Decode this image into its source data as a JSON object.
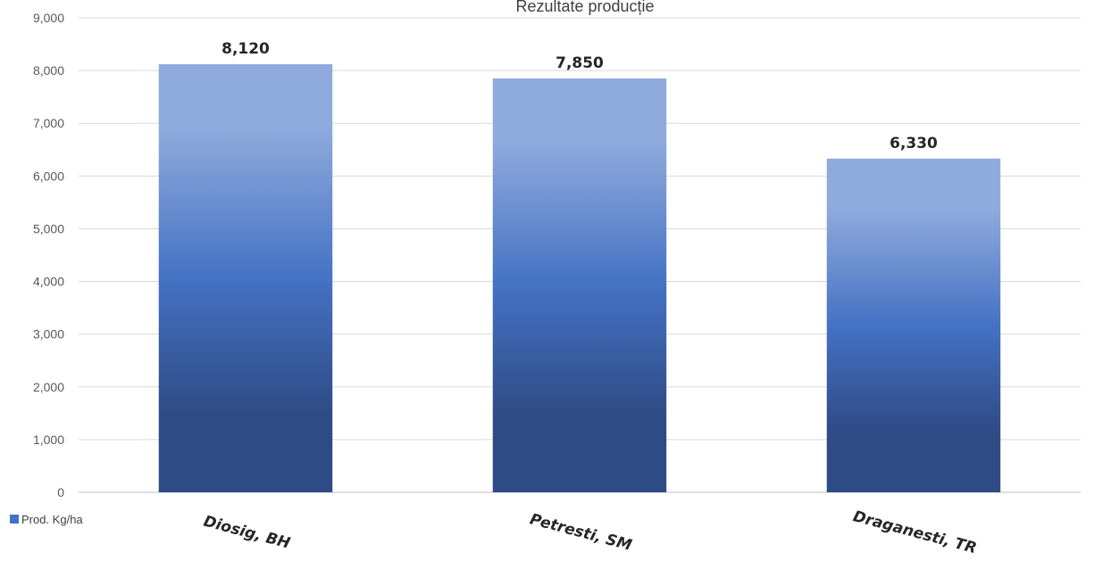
{
  "chart_data": {
    "type": "bar",
    "title": "Rezultate producție",
    "categories": [
      "Diosig, BH",
      "Petresti, SM",
      "Draganesti, TR"
    ],
    "series": [
      {
        "name": "Prod. Kg/ha",
        "values": [
          8120,
          7850,
          6330
        ]
      }
    ],
    "data_labels": [
      "8,120",
      "7,850",
      "6,330"
    ],
    "y_ticks": [
      "0",
      "1,000",
      "2,000",
      "3,000",
      "4,000",
      "5,000",
      "6,000",
      "7,000",
      "8,000",
      "9,000"
    ],
    "ylim": [
      0,
      9000
    ],
    "y_step": 1000,
    "grid": true,
    "legend_position": "bottom-left",
    "colors": {
      "bar_top": "#8faadc",
      "bar_mid": "#4472c4",
      "bar_bottom": "#2f4b85",
      "gridline": "#d9d9d9",
      "axis": "#bfbfbf",
      "legend_swatch": "#4472c4"
    }
  }
}
